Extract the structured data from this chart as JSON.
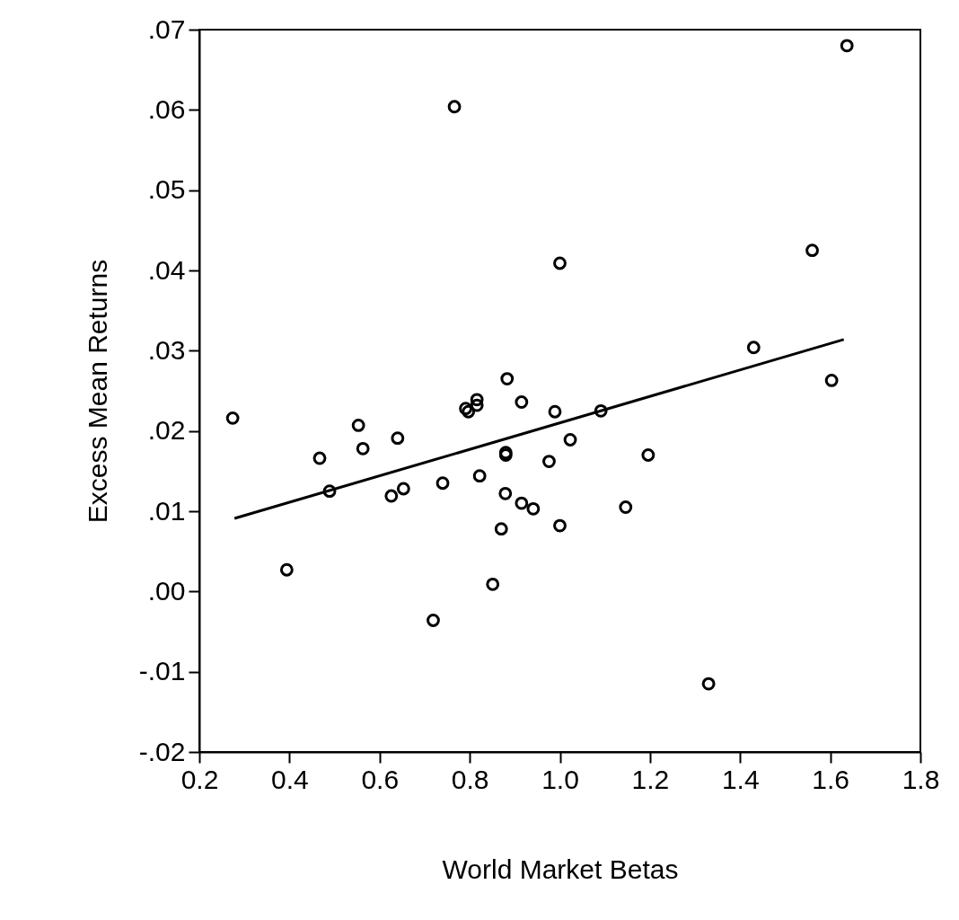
{
  "chart_data": {
    "type": "scatter",
    "xlabel": "World Market Betas",
    "ylabel": "Excess Mean Returns",
    "marker": "circle",
    "grid": false,
    "xlim": [
      0.2,
      1.8
    ],
    "ylim": [
      -0.02,
      0.07
    ],
    "xticks": [
      0.2,
      0.4,
      0.6,
      0.8,
      {
        "value": 1,
        "label": "1.0"
      },
      1.2,
      1.4,
      1.6,
      1.8
    ],
    "yticks": [
      {
        "value": -0.02,
        "label": "-.02"
      },
      {
        "value": -0.01,
        "label": "-.01"
      },
      {
        "value": 0,
        "label": ".00"
      },
      {
        "value": 0.01,
        "label": ".01"
      },
      {
        "value": 0.02,
        "label": ".02"
      },
      {
        "value": 0.03,
        "label": ".03"
      },
      {
        "value": 0.04,
        "label": ".04"
      },
      {
        "value": 0.05,
        "label": ".05"
      },
      {
        "value": 0.06,
        "label": ".06"
      },
      {
        "value": 0.07,
        "label": ".07"
      }
    ],
    "series": [
      {
        "color": "#000000",
        "x": [
          0.274,
          0.553,
          0.563,
          0.467,
          0.64,
          0.489,
          0.626,
          0.653,
          0.74,
          0.394,
          0.719,
          0.883,
          0.791,
          0.797,
          0.816,
          0.816,
          0.915,
          0.989,
          1.091,
          1.023,
          0.88,
          0.88,
          0.976,
          1.196,
          0.822,
          0.879,
          0.915,
          0.941,
          1.146,
          1.0,
          0.87,
          0.851,
          1.43,
          1.603,
          1.33,
          1.637,
          0.766,
          1.0,
          1.56
        ],
        "values": [
          0.0216,
          0.0207,
          0.0178,
          0.0166,
          0.0191,
          0.0125,
          0.0119,
          0.0128,
          0.0135,
          0.0027,
          -0.0036,
          0.0265,
          0.0228,
          0.0224,
          0.0239,
          0.0232,
          0.0236,
          0.0224,
          0.0225,
          0.0189,
          0.0173,
          0.017,
          0.0162,
          0.017,
          0.0144,
          0.0122,
          0.011,
          0.0103,
          0.0105,
          0.0082,
          0.0078,
          0.0009,
          0.0304,
          0.0263,
          -0.0115,
          0.068,
          0.0604,
          0.0409,
          0.0425
        ]
      },
      {
        "type": "line",
        "color": "#000000",
        "marker": "none",
        "line_style": "solid",
        "x": [
          0.278,
          1.63
        ],
        "values": [
          0.0091,
          0.0314
        ]
      }
    ]
  }
}
